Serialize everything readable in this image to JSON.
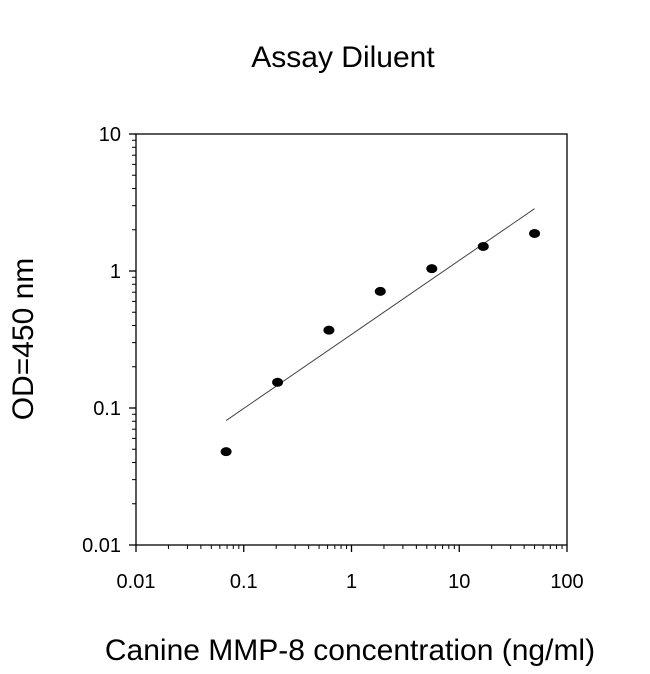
{
  "chart_data": {
    "type": "scatter",
    "title": "Assay Diluent",
    "xlabel": "Canine MMP-8 concentration (ng/ml)",
    "ylabel": "OD=450 nm",
    "xscale": "log",
    "yscale": "log",
    "xlim": [
      0.01,
      100
    ],
    "ylim": [
      0.01,
      10
    ],
    "x_ticks": [
      "0.01",
      "0.1",
      "1",
      "10",
      "100"
    ],
    "y_ticks": [
      "0.01",
      "0.1",
      "1",
      "10"
    ],
    "grid": false,
    "points": [
      {
        "x": 0.0686,
        "y": 0.048
      },
      {
        "x": 0.206,
        "y": 0.154
      },
      {
        "x": 0.617,
        "y": 0.37
      },
      {
        "x": 1.85,
        "y": 0.71
      },
      {
        "x": 5.56,
        "y": 1.04
      },
      {
        "x": 16.7,
        "y": 1.51
      },
      {
        "x": 50,
        "y": 1.88
      }
    ],
    "fit_line": {
      "x": [
        0.0686,
        50
      ],
      "y": [
        0.081,
        2.85
      ]
    },
    "colors": {
      "points": "#000000",
      "line": "#444444",
      "axes": "#000000"
    }
  }
}
